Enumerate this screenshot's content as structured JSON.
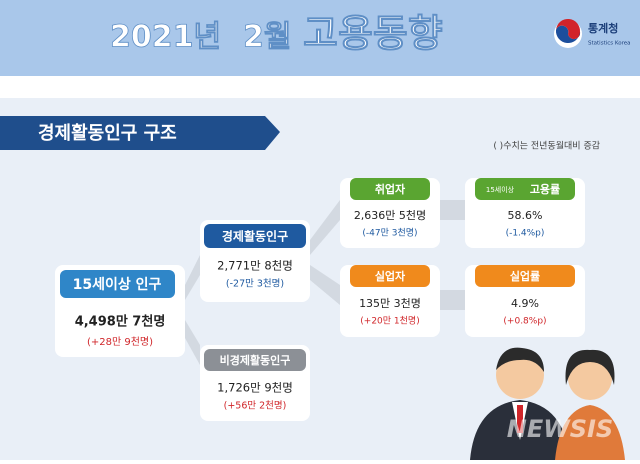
{
  "header": {
    "year": "2021년",
    "month": "2월",
    "topic": "고용동향",
    "logo": "통계청",
    "logo_en": "Statistics Korea"
  },
  "section": {
    "title": "경제활동인구 구조",
    "note": "( )수치는 전년동월대비 증감"
  },
  "nodes": [
    {
      "label": "15세이상 인구",
      "value": "4,498만 7천명",
      "change": "(+28만 9천명)"
    },
    {
      "label": "경제활동인구",
      "value": "2,771만 8천명",
      "change": "(-27만 3천명)"
    },
    {
      "label": "비경제활동인구",
      "value": "1,726만 9천명",
      "change": "(+56만 2천명)"
    },
    {
      "label": "취업자",
      "value": "2,636만 5천명",
      "change": "(-47만 3천명)"
    },
    {
      "label": "실업자",
      "value": "135만 3천명",
      "change": "(+20만 1천명)"
    },
    {
      "label_prefix": "15세이상",
      "label": "고용률",
      "value": "58.6%",
      "change": "(-1.4%p)"
    },
    {
      "label": "실업률",
      "value": "4.9%",
      "change": "(+0.8%p)"
    }
  ],
  "watermark": "NEWSIS"
}
